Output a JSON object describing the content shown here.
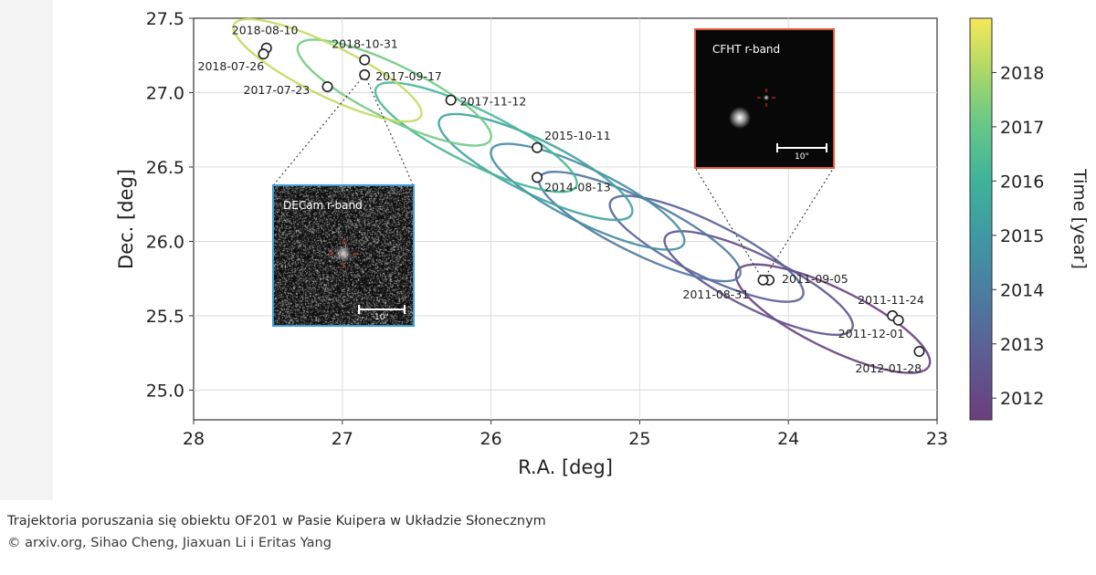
{
  "figure": {
    "caption": "Trajektoria poruszania się obiektu OF201 w Pasie Kuipera w Układzie Słonecznym",
    "credit": "© arxiv.org, Sihao Cheng, Jiaxuan Li i Eritas Yang"
  },
  "chart_data": {
    "type": "scatter",
    "title": "",
    "xlabel": "R.A. [deg]",
    "ylabel": "Dec. [deg]",
    "xlim": [
      28,
      23
    ],
    "ylim": [
      24.8,
      27.5
    ],
    "x_axis_reversed": true,
    "xticks": [
      28,
      27,
      26,
      25,
      24,
      23
    ],
    "xtick_labels": [
      "28",
      "27",
      "26",
      "25",
      "24",
      "23"
    ],
    "yticks": [
      25.0,
      25.5,
      26.0,
      26.5,
      27.0,
      27.5
    ],
    "ytick_labels": [
      "25.0",
      "25.5",
      "26.0",
      "26.5",
      "27.0",
      "27.5"
    ],
    "grid": true,
    "colorbar": {
      "label": "Time [year]",
      "range": [
        2011.6,
        2019.0
      ],
      "ticks": [
        2012,
        2013,
        2014,
        2015,
        2016,
        2017,
        2018
      ],
      "tick_labels": [
        "2012",
        "2013",
        "2014",
        "2015",
        "2016",
        "2017",
        "2018"
      ],
      "colormap": "viridis"
    },
    "observations": [
      {
        "date": "2018-08-10",
        "ra": 27.51,
        "dec": 27.3
      },
      {
        "date": "2018-07-26",
        "ra": 27.53,
        "dec": 27.26
      },
      {
        "date": "2018-10-31",
        "ra": 26.85,
        "dec": 27.22
      },
      {
        "date": "2017-09-17",
        "ra": 26.85,
        "dec": 27.12
      },
      {
        "date": "2017-07-23",
        "ra": 27.1,
        "dec": 27.04
      },
      {
        "date": "2017-11-12",
        "ra": 26.27,
        "dec": 26.95
      },
      {
        "date": "2015-10-11",
        "ra": 25.69,
        "dec": 26.63
      },
      {
        "date": "2014-08-13",
        "ra": 25.69,
        "dec": 26.43
      },
      {
        "date": "2011-09-05",
        "ra": 24.13,
        "dec": 25.74
      },
      {
        "date": "2011-08-31",
        "ra": 24.17,
        "dec": 25.74
      },
      {
        "date": "2011-11-24",
        "ra": 23.3,
        "dec": 25.5
      },
      {
        "date": "2011-12-01",
        "ra": 23.26,
        "dec": 25.47
      },
      {
        "date": "2012-01-28",
        "ra": 23.12,
        "dec": 25.26
      }
    ],
    "trajectory_loops": [
      {
        "year": 2011.75,
        "center_ra": 23.7,
        "center_dec": 25.48,
        "semi_major_deg": 0.72,
        "semi_minor_deg": 0.2
      },
      {
        "year": 2012.4,
        "center_ra": 24.2,
        "center_dec": 25.72,
        "semi_major_deg": 0.7,
        "semi_minor_deg": 0.18
      },
      {
        "year": 2013.0,
        "center_ra": 24.55,
        "center_dec": 25.95,
        "semi_major_deg": 0.72,
        "semi_minor_deg": 0.18
      },
      {
        "year": 2013.7,
        "center_ra": 25.0,
        "center_dec": 26.1,
        "semi_major_deg": 0.75,
        "semi_minor_deg": 0.18
      },
      {
        "year": 2014.5,
        "center_ra": 25.35,
        "center_dec": 26.3,
        "semi_major_deg": 0.72,
        "semi_minor_deg": 0.18
      },
      {
        "year": 2015.3,
        "center_ra": 25.7,
        "center_dec": 26.5,
        "semi_major_deg": 0.72,
        "semi_minor_deg": 0.18
      },
      {
        "year": 2016.2,
        "center_ra": 26.1,
        "center_dec": 26.7,
        "semi_major_deg": 0.75,
        "semi_minor_deg": 0.18
      },
      {
        "year": 2017.2,
        "center_ra": 26.65,
        "center_dec": 27.0,
        "semi_major_deg": 0.72,
        "semi_minor_deg": 0.18
      },
      {
        "year": 2018.3,
        "center_ra": 27.1,
        "center_dec": 27.15,
        "semi_major_deg": 0.7,
        "semi_minor_deg": 0.17
      }
    ],
    "insets": [
      {
        "title": "DECam r-band",
        "scale_label": "10\"",
        "border_color": "#3a9fd6",
        "background": "noise"
      },
      {
        "title": "CFHT r-band",
        "scale_label": "10\"",
        "border_color": "#e05a3a",
        "background": "dark"
      }
    ]
  }
}
